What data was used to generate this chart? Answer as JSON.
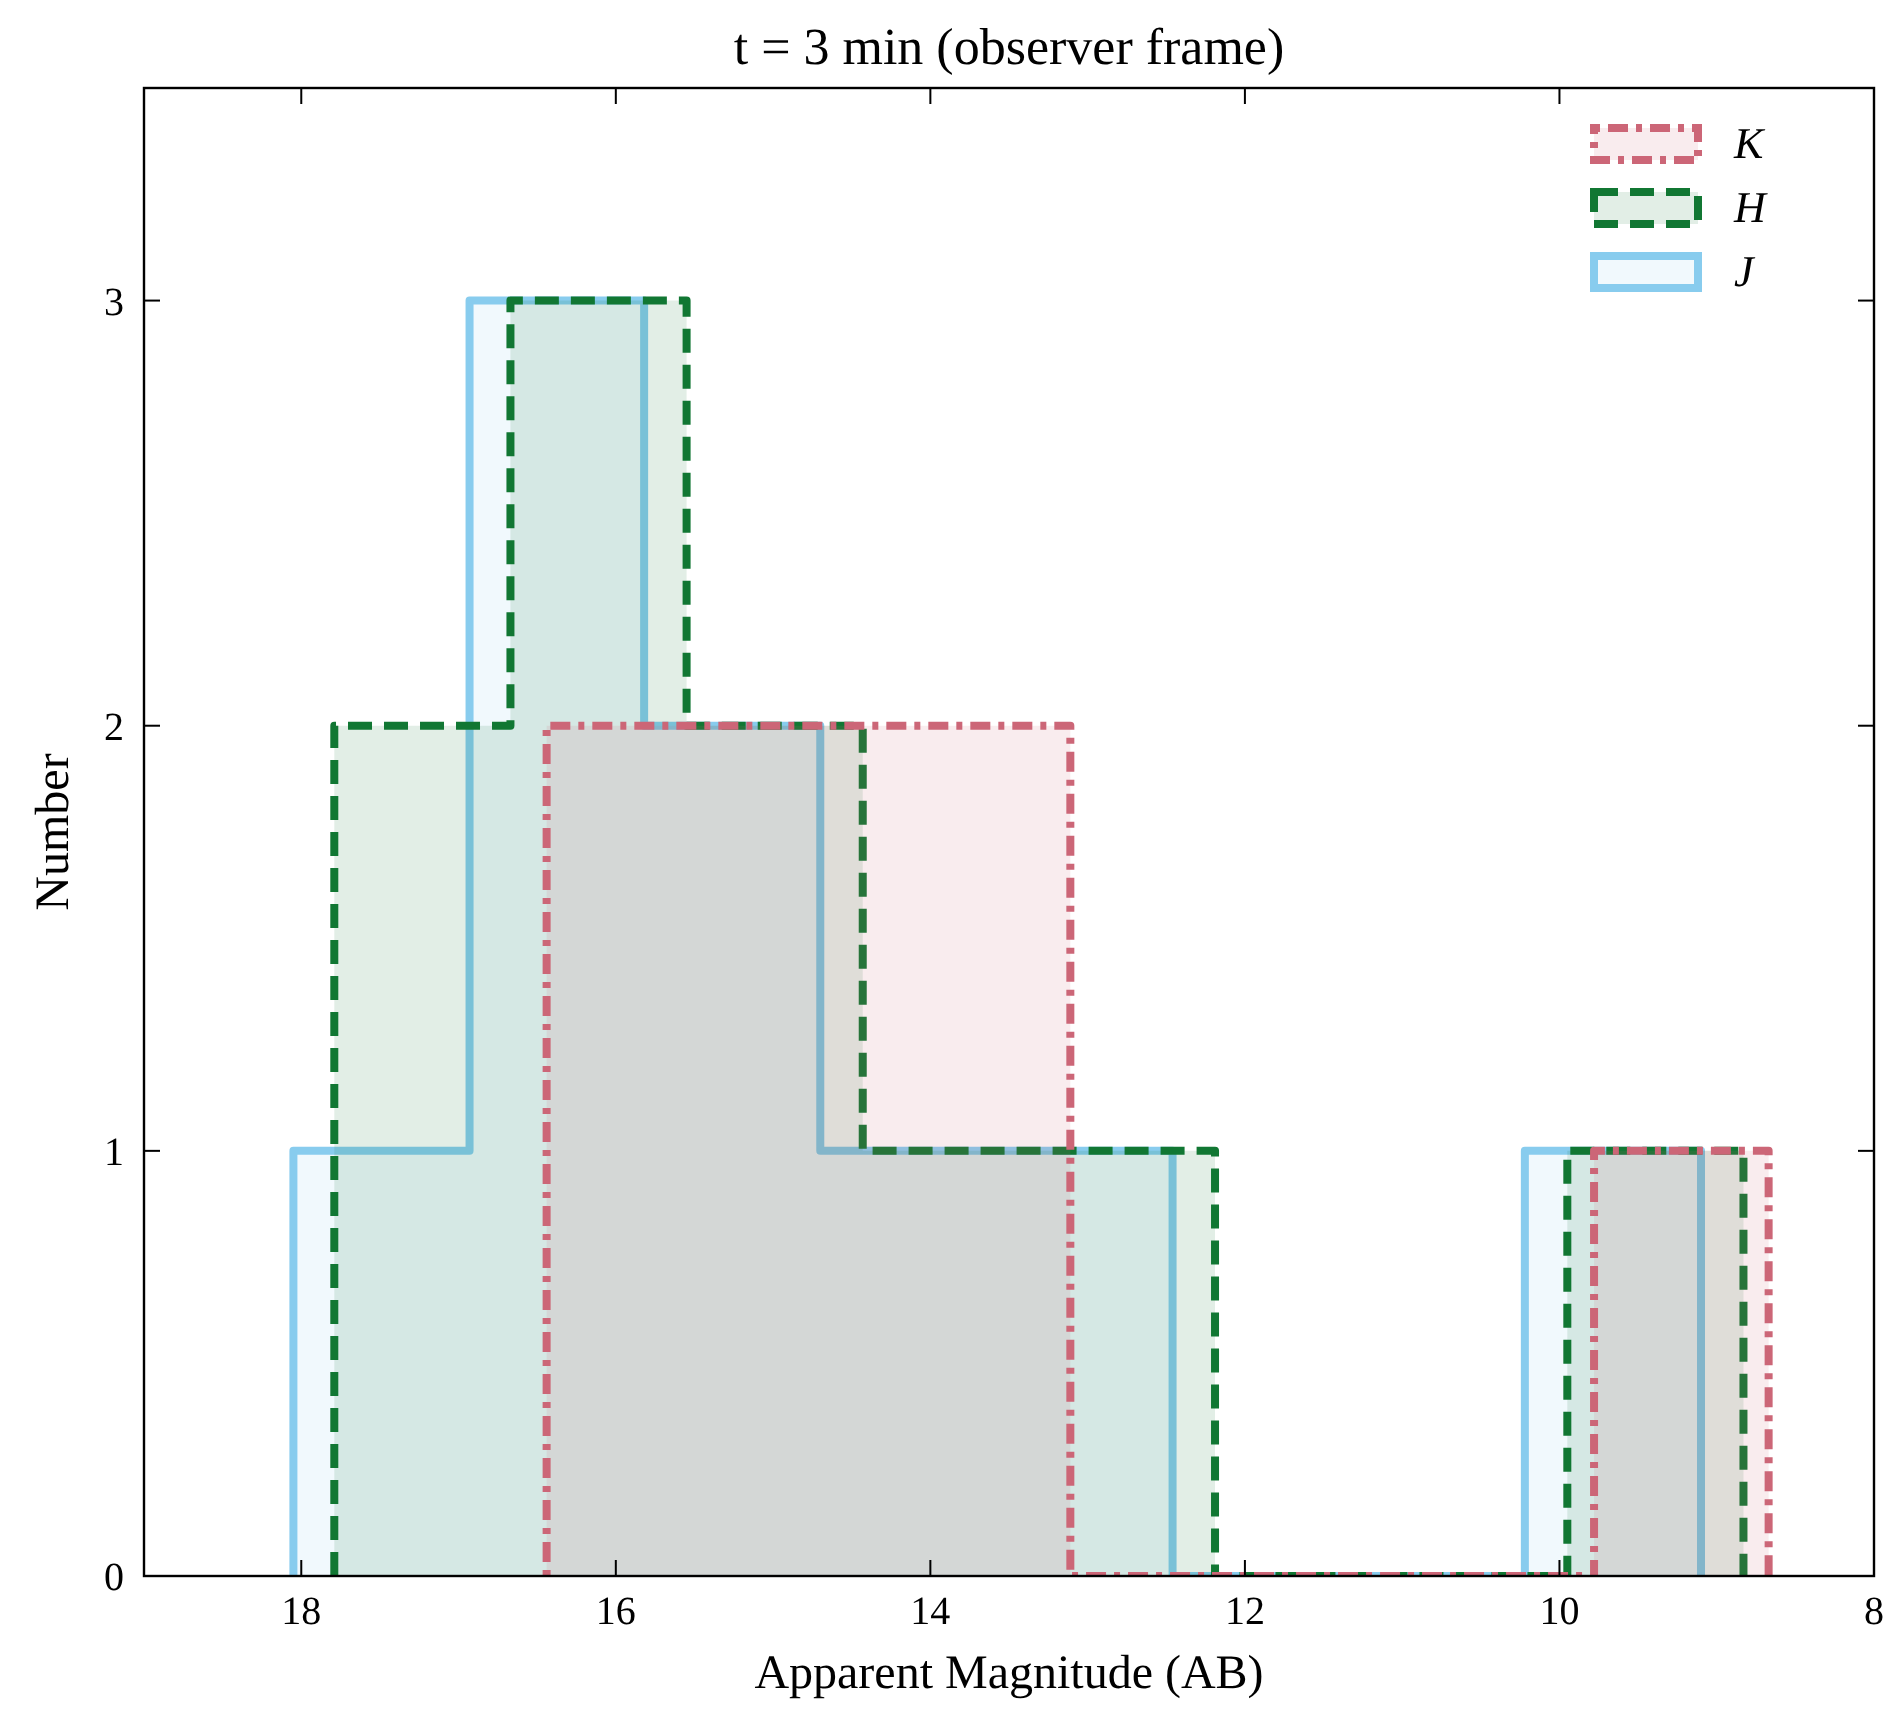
{
  "chart_data": {
    "type": "step",
    "title": "t = 3 min (observer frame)",
    "xlabel": "Apparent Magnitude (AB)",
    "ylabel": "Number",
    "xlim": [
      19,
      8
    ],
    "xticks": [
      18,
      16,
      14,
      12,
      10,
      8
    ],
    "ylim": [
      0,
      3.5
    ],
    "yticks": [
      0,
      1,
      2,
      3
    ],
    "grid": false,
    "legend": "top right",
    "series": [
      {
        "name": "K",
        "color": "#cc6677",
        "line_style": "dotted",
        "x": [
          16.44,
          16.44,
          15.33,
          14.22,
          13.11,
          12.0,
          10.89,
          9.78,
          8.67
        ],
        "values": [
          0,
          2,
          2,
          2,
          0,
          0,
          0,
          1,
          0
        ]
      },
      {
        "name": "H",
        "color": "#117733",
        "line_style": "dashed",
        "x": [
          17.79,
          17.79,
          16.67,
          15.55,
          14.43,
          13.31,
          12.19,
          11.07,
          9.95,
          8.83
        ],
        "values": [
          0,
          2,
          3,
          2,
          1,
          1,
          0,
          0,
          1,
          0
        ]
      },
      {
        "name": "J",
        "color": "#88ccee",
        "line_style": "solid",
        "x": [
          18.05,
          18.05,
          16.93,
          15.82,
          14.7,
          13.58,
          12.46,
          11.34,
          10.22,
          9.1
        ],
        "values": [
          0,
          1,
          3,
          2,
          1,
          1,
          0,
          0,
          1,
          0
        ]
      }
    ]
  }
}
